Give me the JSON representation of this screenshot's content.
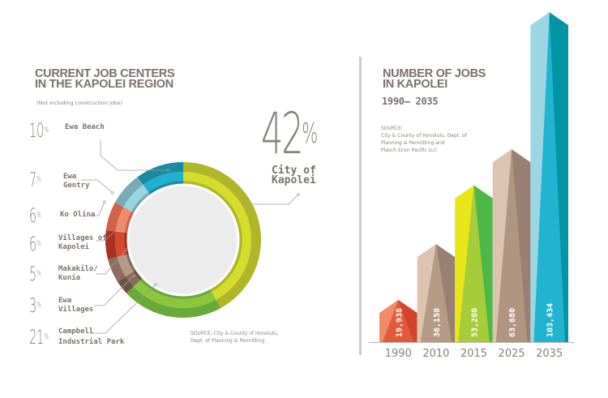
{
  "left": {
    "title_line1": "CURRENT JOB CENTERS",
    "title_line2": "IN THE KAPOLEI REGION",
    "subtitle": "(Not including construction jobs)",
    "source_line1": "SOURCE: City & County of Honolulu,",
    "source_line2": "Dept. of Planning & Permitting",
    "highlight_pct": "42",
    "highlight_label_line1": "City of",
    "highlight_label_line2": "Kapolei"
  },
  "right": {
    "title_line1": "NUMBER OF JOBS",
    "title_line2": "IN KAPOLEI",
    "range": "1990– 2035",
    "source_line1": "SOURCE:",
    "source_line2": "City & County of Honolulu, Dept. of",
    "source_line3": "Planning & Permitting and",
    "source_line4": "Plasch Econ Pacific LLC"
  },
  "chart_data": [
    {
      "type": "pie",
      "title": "Current Job Centers in the Kapolei Region",
      "slices": [
        {
          "label": "City of Kapolei",
          "value": 42,
          "outer": "#b0b52a",
          "inner": "#d4dc2c"
        },
        {
          "label": "Campbell Industrial Park",
          "value": 21,
          "outer": "#6aa83a",
          "inner": "#8cc63f"
        },
        {
          "label": "Ewa Villages",
          "value": 3,
          "outer": "#6e5246",
          "inner": "#8a6a5c"
        },
        {
          "label": "Makakilo/ Kunia",
          "value": 5,
          "outer": "#8c6e60",
          "inner": "#b59a88"
        },
        {
          "label": "Villages of Kapolei",
          "value": 6,
          "outer": "#a8321f",
          "inner": "#d24a30"
        },
        {
          "label": "Ko Olina",
          "value": 6,
          "outer": "#cf6248",
          "inner": "#ef8a6e"
        },
        {
          "label": "Ewa Gentry",
          "value": 7,
          "outer": "#78aab8",
          "inner": "#9ad4e0"
        },
        {
          "label": "Ewa Beach",
          "value": 10,
          "outer": "#1a8aa0",
          "inner": "#22b0d0"
        }
      ]
    },
    {
      "type": "bar",
      "title": "Number of Jobs in Kapolei 1990–2035",
      "categories": [
        "1990",
        "2010",
        "2015",
        "2025",
        "2035"
      ],
      "values": [
        19938,
        36150,
        53200,
        63680,
        103434
      ],
      "value_labels": [
        "19,938",
        "36,150",
        "53,200",
        "63,680",
        "103,434"
      ],
      "colors": [
        {
          "light": "#ef8a6a",
          "mid": "#e25a3c",
          "dark": "#d4432e"
        },
        {
          "light": "#dcc4b0",
          "mid": "#b59a85",
          "dark": "#9a8074"
        },
        {
          "light": "#e8e51a",
          "mid": "#a6cc3a",
          "dark": "#4db848"
        },
        {
          "light": "#dcc4b0",
          "mid": "#b09580",
          "dark": "#9a8074"
        },
        {
          "light": "#9dd6e3",
          "mid": "#22b3d0",
          "dark": "#0095a5"
        }
      ]
    }
  ]
}
